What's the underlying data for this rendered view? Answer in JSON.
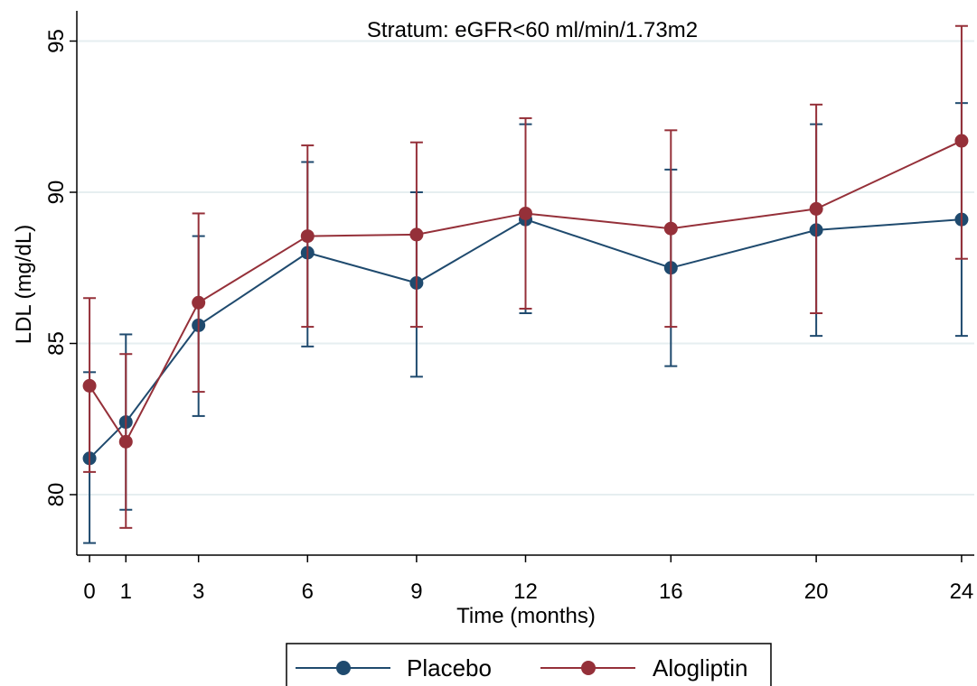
{
  "chart_data": {
    "type": "line",
    "title": "Stratum: eGFR<60 ml/min/1.73m2",
    "xlabel": "Time (months)",
    "ylabel": "LDL (mg/dL)",
    "x": [
      0,
      1,
      3,
      6,
      9,
      12,
      16,
      20,
      24
    ],
    "x_tick_labels": [
      "0",
      "1",
      "3",
      "6",
      "9",
      "12",
      "16",
      "20",
      "24"
    ],
    "y_ticks": [
      80,
      85,
      90,
      95
    ],
    "y_tick_labels": [
      "80",
      "85",
      "90",
      "95"
    ],
    "xlim": [
      -0.35,
      24.35
    ],
    "ylim": [
      78.0,
      96.0
    ],
    "grid": true,
    "legend_position": "bottom",
    "series": [
      {
        "name": "Placebo",
        "color": "#1f4a6e",
        "values": [
          81.2,
          82.4,
          85.6,
          88.0,
          87.0,
          89.1,
          87.5,
          88.75,
          89.1
        ],
        "lower": [
          78.4,
          79.5,
          82.6,
          84.9,
          83.9,
          86.0,
          84.25,
          85.25,
          85.25
        ],
        "upper": [
          84.05,
          85.3,
          88.55,
          91.0,
          90.0,
          92.25,
          90.75,
          92.25,
          92.95
        ]
      },
      {
        "name": "Alogliptin",
        "color": "#953039",
        "values": [
          83.6,
          81.75,
          86.35,
          88.55,
          88.6,
          89.3,
          88.8,
          89.45,
          91.7
        ],
        "lower": [
          80.75,
          78.9,
          83.4,
          85.55,
          85.55,
          86.15,
          85.55,
          86.0,
          87.8
        ],
        "upper": [
          86.5,
          84.65,
          89.3,
          91.55,
          91.65,
          92.45,
          92.05,
          92.9,
          95.5
        ]
      }
    ]
  }
}
